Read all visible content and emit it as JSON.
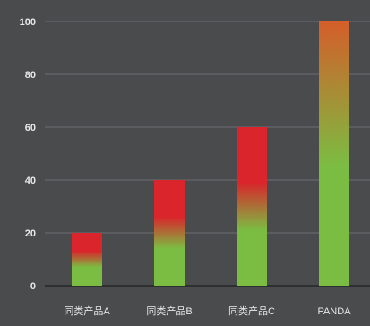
{
  "chart_data": {
    "type": "bar",
    "title": "",
    "xlabel": "",
    "ylabel": "",
    "categories": [
      "同类产品A",
      "同类产品B",
      "同类产品C",
      "PANDA"
    ],
    "values": [
      20,
      40,
      60,
      100
    ],
    "ylim": [
      0,
      100
    ],
    "yticks": [
      0,
      20,
      40,
      60,
      80,
      100
    ],
    "grid": true,
    "legend": "none"
  },
  "colors": {
    "background": "#4a4b4d",
    "gridline": "#6b6e74",
    "tick_label": "#e8e8e8",
    "bar_top_red": "#d9252b",
    "bar_top_orange": "#d45e2a",
    "bar_bottom_green": "#7bbd42"
  }
}
